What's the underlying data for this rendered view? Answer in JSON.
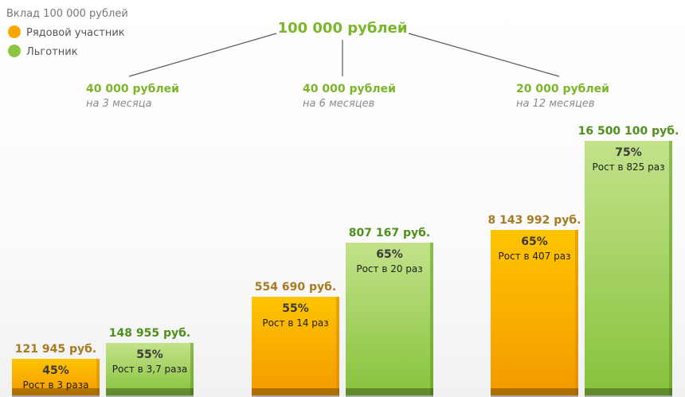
{
  "legend": {
    "title": "Вклад 100 000 рублей",
    "items": [
      {
        "label": "Рядовой участник",
        "color": "#f7a600"
      },
      {
        "label": "Льготник",
        "color": "#8cc63f"
      }
    ]
  },
  "total": "100 000 рублей",
  "chart_data": {
    "type": "bar",
    "categories": [
      "40 000 рублей на 3 месяца",
      "40 000 рублей на 6 месяцев",
      "20 000 рублей на 12 месяцев"
    ],
    "groups": [
      {
        "amount": "40 000 рублей",
        "term": "на 3 месяца"
      },
      {
        "amount": "40 000 рублей",
        "term": "на 6 месяцев"
      },
      {
        "amount": "20 000 рублей",
        "term": "на 12 месяцев"
      }
    ],
    "series": [
      {
        "name": "Рядовой участник",
        "color": "#f7a600",
        "values": [
          121945,
          554690,
          8143992
        ],
        "value_labels": [
          "121 945 руб.",
          "554 690 руб.",
          "8 143 992 руб."
        ],
        "percent_labels": [
          "45%",
          "55%",
          "65%"
        ],
        "growth_labels": [
          "Рост в 3 раза",
          "Рост в 14 раз",
          "Рост в 407 раз"
        ]
      },
      {
        "name": "Льготник",
        "color": "#8cc63f",
        "values": [
          148955,
          807167,
          16500100
        ],
        "value_labels": [
          "148 955 руб.",
          "807 167 руб.",
          "16 500 100 руб."
        ],
        "percent_labels": [
          "55%",
          "65%",
          "75%"
        ],
        "growth_labels": [
          "Рост в 3,7 раза",
          "Рост в 20 раз",
          "Рост в 825 раз"
        ]
      }
    ]
  }
}
